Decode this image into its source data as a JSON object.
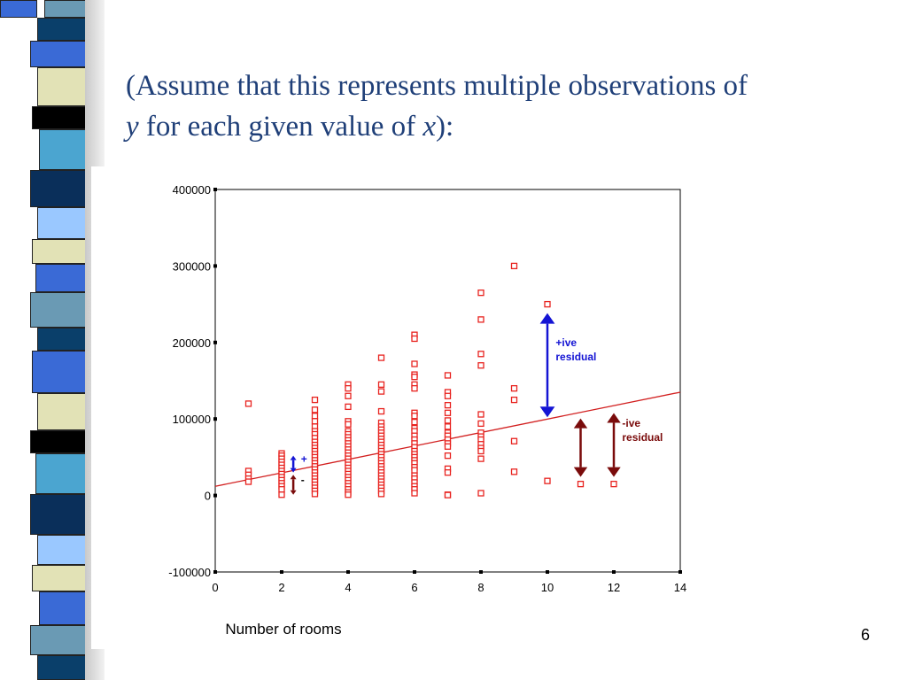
{
  "slide": {
    "title_line1": "(Assume that this represents multiple observations of",
    "title_y": "y",
    "title_mid": " for each given value of ",
    "title_x": "x",
    "title_end": "):",
    "page_number": "6"
  },
  "colors": {
    "title": "#1f3f78",
    "points": "#e8231f",
    "regression_line": "#d21f1f",
    "positive_residual": "#1414d4",
    "negative_residual": "#7a0b0b",
    "strip_bands": [
      "#3a6ad6",
      "#6a9ab4",
      "#0a3f6a",
      "#3a6ad6",
      "#e2e2b6",
      "#000000",
      "#4ba5d0",
      "#0a2f5a",
      "#9ac8ff",
      "#e2e2b6"
    ]
  },
  "chart_data": {
    "type": "scatter",
    "xlabel": "Number of rooms",
    "ylabel": "",
    "xlim": [
      0,
      14
    ],
    "ylim": [
      -100000,
      400000
    ],
    "x_ticks": [
      "0",
      "2",
      "4",
      "6",
      "8",
      "10",
      "12",
      "14"
    ],
    "y_ticks": [
      "400000",
      "300000",
      "200000",
      "100000",
      "0",
      "-100000"
    ],
    "grid": false,
    "regression_line": {
      "x": [
        0,
        14
      ],
      "y": [
        12000,
        135000
      ]
    },
    "points": [
      [
        1,
        120000
      ],
      [
        1,
        32000
      ],
      [
        1,
        27000
      ],
      [
        1,
        22000
      ],
      [
        1,
        18000
      ],
      [
        2,
        55000
      ],
      [
        2,
        52000
      ],
      [
        2,
        48000
      ],
      [
        2,
        44000
      ],
      [
        2,
        40000
      ],
      [
        2,
        36000
      ],
      [
        2,
        32000
      ],
      [
        2,
        28000
      ],
      [
        2,
        24000
      ],
      [
        2,
        20000
      ],
      [
        2,
        16000
      ],
      [
        2,
        12000
      ],
      [
        2,
        8000
      ],
      [
        2,
        1000
      ],
      [
        3,
        125000
      ],
      [
        3,
        112000
      ],
      [
        3,
        104000
      ],
      [
        3,
        97000
      ],
      [
        3,
        90000
      ],
      [
        3,
        84000
      ],
      [
        3,
        80000
      ],
      [
        3,
        75000
      ],
      [
        3,
        70000
      ],
      [
        3,
        66000
      ],
      [
        3,
        62000
      ],
      [
        3,
        58000
      ],
      [
        3,
        54000
      ],
      [
        3,
        50000
      ],
      [
        3,
        46000
      ],
      [
        3,
        42000
      ],
      [
        3,
        38000
      ],
      [
        3,
        34000
      ],
      [
        3,
        30000
      ],
      [
        3,
        26000
      ],
      [
        3,
        22000
      ],
      [
        3,
        18000
      ],
      [
        3,
        14000
      ],
      [
        3,
        10000
      ],
      [
        3,
        6000
      ],
      [
        3,
        2000
      ],
      [
        4,
        145000
      ],
      [
        4,
        140000
      ],
      [
        4,
        130000
      ],
      [
        4,
        116000
      ],
      [
        4,
        97000
      ],
      [
        4,
        93000
      ],
      [
        4,
        84000
      ],
      [
        4,
        80000
      ],
      [
        4,
        76000
      ],
      [
        4,
        72000
      ],
      [
        4,
        68000
      ],
      [
        4,
        64000
      ],
      [
        4,
        60000
      ],
      [
        4,
        56000
      ],
      [
        4,
        52000
      ],
      [
        4,
        48000
      ],
      [
        4,
        44000
      ],
      [
        4,
        40000
      ],
      [
        4,
        36000
      ],
      [
        4,
        32000
      ],
      [
        4,
        28000
      ],
      [
        4,
        24000
      ],
      [
        4,
        20000
      ],
      [
        4,
        16000
      ],
      [
        4,
        12000
      ],
      [
        4,
        8000
      ],
      [
        4,
        4000
      ],
      [
        4,
        1000
      ],
      [
        5,
        180000
      ],
      [
        5,
        145000
      ],
      [
        5,
        136000
      ],
      [
        5,
        110000
      ],
      [
        5,
        95000
      ],
      [
        5,
        90000
      ],
      [
        5,
        86000
      ],
      [
        5,
        82000
      ],
      [
        5,
        78000
      ],
      [
        5,
        74000
      ],
      [
        5,
        70000
      ],
      [
        5,
        66000
      ],
      [
        5,
        62000
      ],
      [
        5,
        58000
      ],
      [
        5,
        54000
      ],
      [
        5,
        50000
      ],
      [
        5,
        46000
      ],
      [
        5,
        42000
      ],
      [
        5,
        38000
      ],
      [
        5,
        34000
      ],
      [
        5,
        30000
      ],
      [
        5,
        26000
      ],
      [
        5,
        22000
      ],
      [
        5,
        18000
      ],
      [
        5,
        14000
      ],
      [
        5,
        10000
      ],
      [
        5,
        6000
      ],
      [
        5,
        2000
      ],
      [
        6,
        210000
      ],
      [
        6,
        205000
      ],
      [
        6,
        172000
      ],
      [
        6,
        158000
      ],
      [
        6,
        155000
      ],
      [
        6,
        145000
      ],
      [
        6,
        140000
      ],
      [
        6,
        108000
      ],
      [
        6,
        104000
      ],
      [
        6,
        96000
      ],
      [
        6,
        88000
      ],
      [
        6,
        84000
      ],
      [
        6,
        78000
      ],
      [
        6,
        73000
      ],
      [
        6,
        68000
      ],
      [
        6,
        63000
      ],
      [
        6,
        58000
      ],
      [
        6,
        54000
      ],
      [
        6,
        50000
      ],
      [
        6,
        46000
      ],
      [
        6,
        42000
      ],
      [
        6,
        37000
      ],
      [
        6,
        33000
      ],
      [
        6,
        26000
      ],
      [
        6,
        22000
      ],
      [
        6,
        17000
      ],
      [
        6,
        12000
      ],
      [
        6,
        8000
      ],
      [
        6,
        3000
      ],
      [
        7,
        157000
      ],
      [
        7,
        135000
      ],
      [
        7,
        130000
      ],
      [
        7,
        118000
      ],
      [
        7,
        108000
      ],
      [
        7,
        98000
      ],
      [
        7,
        90000
      ],
      [
        7,
        82000
      ],
      [
        7,
        78000
      ],
      [
        7,
        73000
      ],
      [
        7,
        68000
      ],
      [
        7,
        64000
      ],
      [
        7,
        52000
      ],
      [
        7,
        35000
      ],
      [
        7,
        30000
      ],
      [
        7,
        1000
      ],
      [
        7,
        500
      ],
      [
        8,
        265000
      ],
      [
        8,
        230000
      ],
      [
        8,
        185000
      ],
      [
        8,
        170000
      ],
      [
        8,
        106000
      ],
      [
        8,
        94000
      ],
      [
        8,
        82000
      ],
      [
        8,
        77000
      ],
      [
        8,
        73000
      ],
      [
        8,
        67000
      ],
      [
        8,
        62000
      ],
      [
        8,
        58000
      ],
      [
        8,
        48000
      ],
      [
        8,
        3000
      ],
      [
        9,
        300000
      ],
      [
        9,
        140000
      ],
      [
        9,
        125000
      ],
      [
        9,
        71000
      ],
      [
        9,
        31000
      ],
      [
        10,
        250000
      ],
      [
        10,
        19000
      ],
      [
        11,
        15000
      ],
      [
        12,
        15000
      ]
    ],
    "annotations": [
      {
        "label": "+ive",
        "label2": "residual",
        "type": "positive"
      },
      {
        "label": "-ive",
        "label2": "residual",
        "type": "negative"
      },
      {
        "label": "+",
        "type": "positive"
      },
      {
        "label": "-",
        "type": "negative"
      }
    ]
  }
}
